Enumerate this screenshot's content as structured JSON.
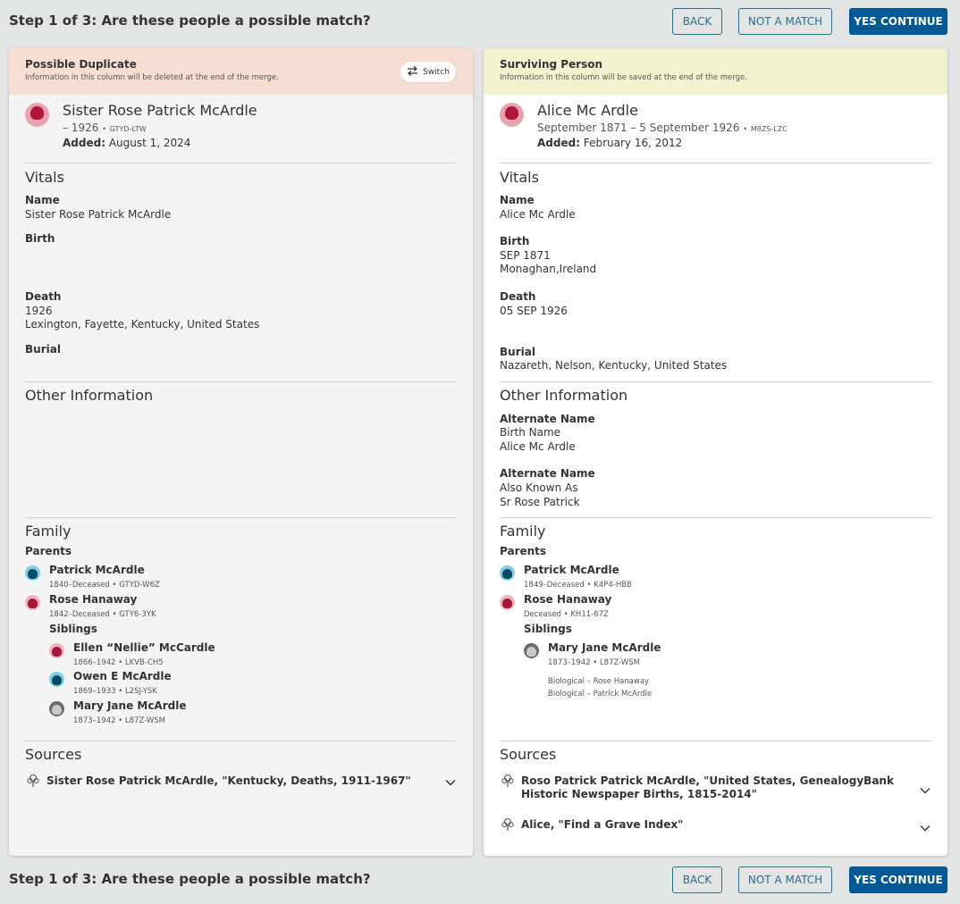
{
  "step": {
    "title": "Step 1 of 3: Are these people a possible match?",
    "back_label": "BACK",
    "not_match_label": "NOT A MATCH",
    "yes_label": "YES CONTINUE"
  },
  "left": {
    "header_title": "Possible Duplicate",
    "header_sub": "Information in this column will be deleted at the end of the merge.",
    "switch_label": "Switch",
    "person": {
      "name": "Sister Rose Patrick McArdle",
      "dates": "– 1926",
      "sep": "•",
      "pid": "GTYD-LTW",
      "added_label": "Added:",
      "added_value": "August 1, 2024"
    },
    "vitals_heading": "Vitals",
    "name_label": "Name",
    "name_value": "Sister Rose Patrick McArdle",
    "birth_label": "Birth",
    "death_label": "Death",
    "death_date": "1926",
    "death_place": "Lexington, Fayette, Kentucky, United States",
    "burial_label": "Burial",
    "other_heading": "Other Information",
    "family_heading": "Family",
    "parents_label": "Parents",
    "parents": [
      {
        "name": "Patrick McArdle",
        "sub": "1840–Deceased • GTYD-W6Z"
      },
      {
        "name": "Rose Hanaway",
        "sub": "1842–Deceased • GTY6-3YK"
      }
    ],
    "siblings_label": "Siblings",
    "siblings": [
      {
        "name": "Ellen “Nellie” McCardle",
        "sub": "1866–1942 • LKVB-CH5"
      },
      {
        "name": "Owen E McArdle",
        "sub": "1869–1933 • L2SJ-YSK"
      },
      {
        "name": "Mary Jane McArdle",
        "sub": "1873–1942 • L87Z-WSM"
      }
    ],
    "sources_heading": "Sources",
    "sources": [
      {
        "title": "Sister Rose Patrick McArdle, \"Kentucky, Deaths, 1911-1967\""
      }
    ]
  },
  "right": {
    "header_title": "Surviving Person",
    "header_sub": "Information in this column will be saved at the end of the merge.",
    "person": {
      "name": "Alice Mc Ardle",
      "dates": "September 1871 – 5 September 1926",
      "sep": "•",
      "pid": "M8ZS-LZC",
      "added_label": "Added:",
      "added_value": "February 16, 2012"
    },
    "vitals_heading": "Vitals",
    "name_label": "Name",
    "name_value": "Alice Mc Ardle",
    "birth_label": "Birth",
    "birth_date": "SEP 1871",
    "birth_place": "Monaghan,Ireland",
    "death_label": "Death",
    "death_date": "05 SEP 1926",
    "burial_label": "Burial",
    "burial_place": "Nazareth, Nelson, Kentucky, United States",
    "other_heading": "Other Information",
    "alt_names": [
      {
        "label": "Alternate Name",
        "type": "Birth Name",
        "value": "Alice Mc Ardle"
      },
      {
        "label": "Alternate Name",
        "type": "Also Known As",
        "value": "Sr Rose Patrick"
      }
    ],
    "family_heading": "Family",
    "parents_label": "Parents",
    "parents": [
      {
        "name": "Patrick McArdle",
        "sub": "1849–Deceased • K4P4-HBB"
      },
      {
        "name": "Rose Hanaway",
        "sub": "Deceased • KH11-67Z"
      }
    ],
    "siblings_label": "Siblings",
    "siblings": [
      {
        "name": "Mary Jane McArdle",
        "sub": "1873–1942 • L87Z-WSM"
      }
    ],
    "relationships": [
      "Biological – Rose Hanaway",
      "Biological – Patrick McArdle"
    ],
    "sources_heading": "Sources",
    "sources": [
      {
        "title": "Roso Patrick Patrick McArdle, \"United States, GenealogyBank Historic Newspaper Births, 1815-2014\""
      },
      {
        "title": "Alice, \"Find a Grave Index\""
      }
    ]
  }
}
